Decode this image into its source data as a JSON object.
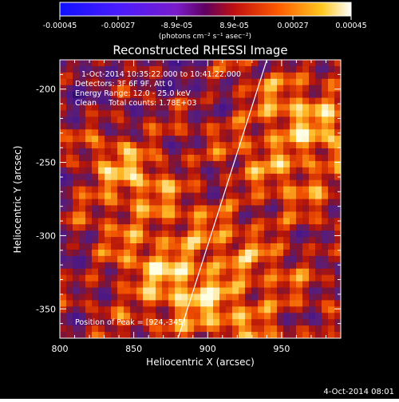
{
  "colorbar": {
    "ticks": [
      "-0.00045",
      "-0.00027",
      "-8.9e-05",
      "8.9e-05",
      "0.00027",
      "0.00045"
    ],
    "tick_values": [
      -0.00045,
      -0.00027,
      -8.9e-05,
      8.9e-05,
      0.00027,
      0.00045
    ],
    "unit_label": "(photons cm⁻² s⁻¹ asec⁻²)",
    "range": [
      -0.00045,
      0.00045
    ]
  },
  "chart_data": {
    "type": "heatmap",
    "title": "Reconstructed RHESSI Image",
    "xlabel": "Heliocentric X (arcsec)",
    "ylabel": "Heliocentric Y (arcsec)",
    "xlim": [
      800,
      990
    ],
    "ylim": [
      -370,
      -180
    ],
    "x_ticks": [
      "800",
      "850",
      "900",
      "950"
    ],
    "x_tick_values": [
      800,
      850,
      900,
      950
    ],
    "y_ticks": [
      "-200",
      "-250",
      "-300",
      "-350"
    ],
    "y_tick_values": [
      -200,
      -250,
      -300,
      -350
    ],
    "annotations": [
      "1-Oct-2014 10:35:22.000 to 10:41:22.000",
      "Detectors: 3F 6F 9F, Att 0",
      "Energy Range: 12.0 - 25.0 keV",
      "Clean     Total counts: 1.78E+03"
    ],
    "peak_label": "Position of Peak = [924,-345]",
    "peak_position": [
      924,
      -345
    ],
    "limb_line": [
      [
        880,
        -370
      ],
      [
        940,
        -180
      ]
    ]
  },
  "footer": {
    "timestamp": "4-Oct-2014 08:01"
  }
}
